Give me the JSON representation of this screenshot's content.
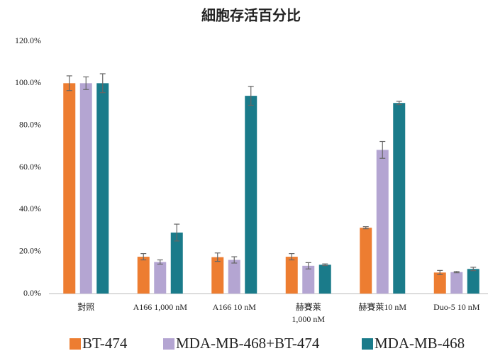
{
  "chart_data": {
    "type": "bar",
    "title": "細胞存活百分比",
    "categories": [
      "對照",
      "A166  1,000 nM",
      "A166  10 nM",
      "赫賽萊\n1,000 nM",
      "赫賽萊10 nM",
      "Duo-5  10 nM"
    ],
    "series": [
      {
        "name": "BT-474",
        "color": "#ed7d31",
        "values": [
          100,
          17.5,
          17.3,
          17.5,
          31.3,
          10
        ],
        "errors": [
          3.5,
          1.5,
          2,
          1.5,
          0.5,
          1
        ]
      },
      {
        "name": "MDA-MB-468+BT-474",
        "color": "#b4a5d2",
        "values": [
          100,
          15,
          16,
          13.2,
          68.3,
          10.2
        ],
        "errors": [
          3,
          1,
          1.5,
          1.5,
          4,
          0.3
        ]
      },
      {
        "name": "MDA-MB-468",
        "color": "#1a7b8a",
        "values": [
          100,
          29,
          94,
          13.7,
          90.6,
          11.7
        ],
        "errors": [
          4.5,
          4,
          4.5,
          0.4,
          0.8,
          0.8
        ]
      }
    ],
    "ylim": [
      0,
      120
    ],
    "yticks": [
      {
        "value": 0,
        "label": "0.0%"
      },
      {
        "value": 20,
        "label": "20.0%"
      },
      {
        "value": 40,
        "label": "40.0%"
      },
      {
        "value": 60,
        "label": "60.0%"
      },
      {
        "value": 80,
        "label": "80.0%"
      },
      {
        "value": 100,
        "label": "100.0%"
      },
      {
        "value": 120,
        "label": "120.0%"
      }
    ],
    "grid": false,
    "legend": "bottom"
  }
}
